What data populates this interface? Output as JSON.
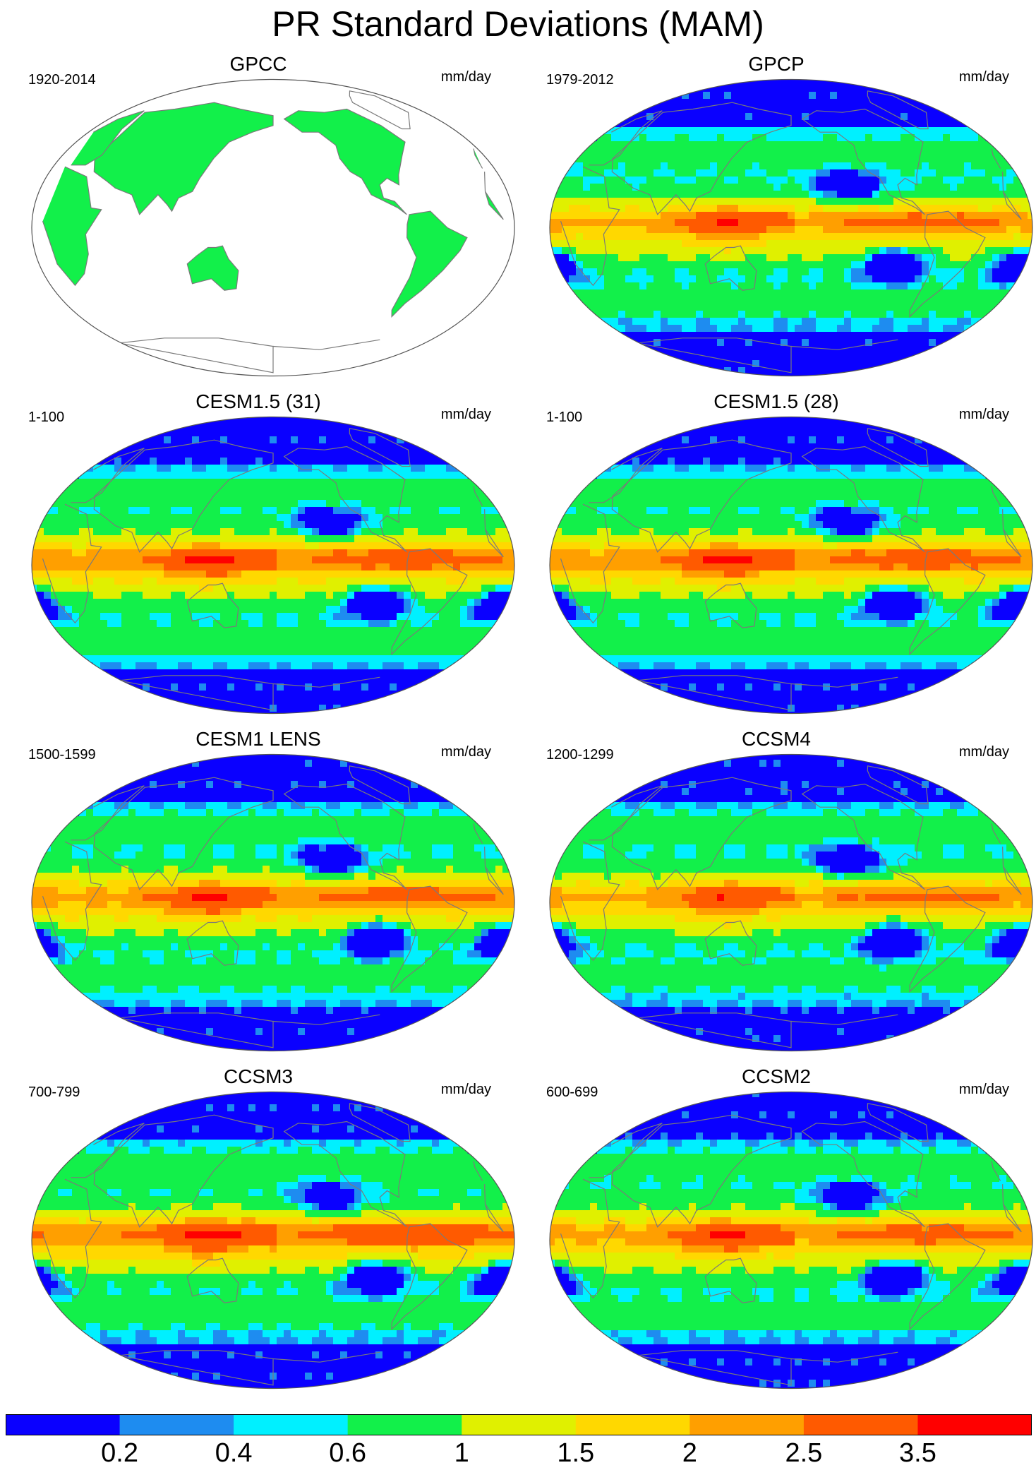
{
  "title": "PR Standard Deviations (MAM)",
  "panels": [
    {
      "name": "GPCC",
      "period": "1920-2014",
      "units": "mm/day",
      "land_only": true,
      "variant": 0
    },
    {
      "name": "GPCP",
      "period": "1979-2012",
      "units": "mm/day",
      "land_only": false,
      "variant": 1
    },
    {
      "name": "CESM1.5 (31)",
      "period": "1-100",
      "units": "mm/day",
      "land_only": false,
      "variant": 2
    },
    {
      "name": "CESM1.5 (28)",
      "period": "1-100",
      "units": "mm/day",
      "land_only": false,
      "variant": 2
    },
    {
      "name": "CESM1 LENS",
      "period": "1500-1599",
      "units": "mm/day",
      "land_only": false,
      "variant": 3
    },
    {
      "name": "CCSM4",
      "period": "1200-1299",
      "units": "mm/day",
      "land_only": false,
      "variant": 4
    },
    {
      "name": "CCSM3",
      "period": "700-799",
      "units": "mm/day",
      "land_only": false,
      "variant": 5
    },
    {
      "name": "CCSM2",
      "period": "600-699",
      "units": "mm/day",
      "land_only": false,
      "variant": 6
    }
  ],
  "colorbar": {
    "levels": [
      "0.2",
      "0.4",
      "0.6",
      "1",
      "1.5",
      "2",
      "2.5",
      "3.5"
    ],
    "colors": [
      "#0a00ff",
      "#1e8cf0",
      "#00f0ff",
      "#12f04a",
      "#e0f000",
      "#ffd800",
      "#ff9f00",
      "#ff5a00",
      "#ff0000"
    ]
  },
  "map_colors": {
    "ocean_missing": "#ffffff",
    "coastline": "#7a7a7a",
    "map_border": "#555555"
  }
}
